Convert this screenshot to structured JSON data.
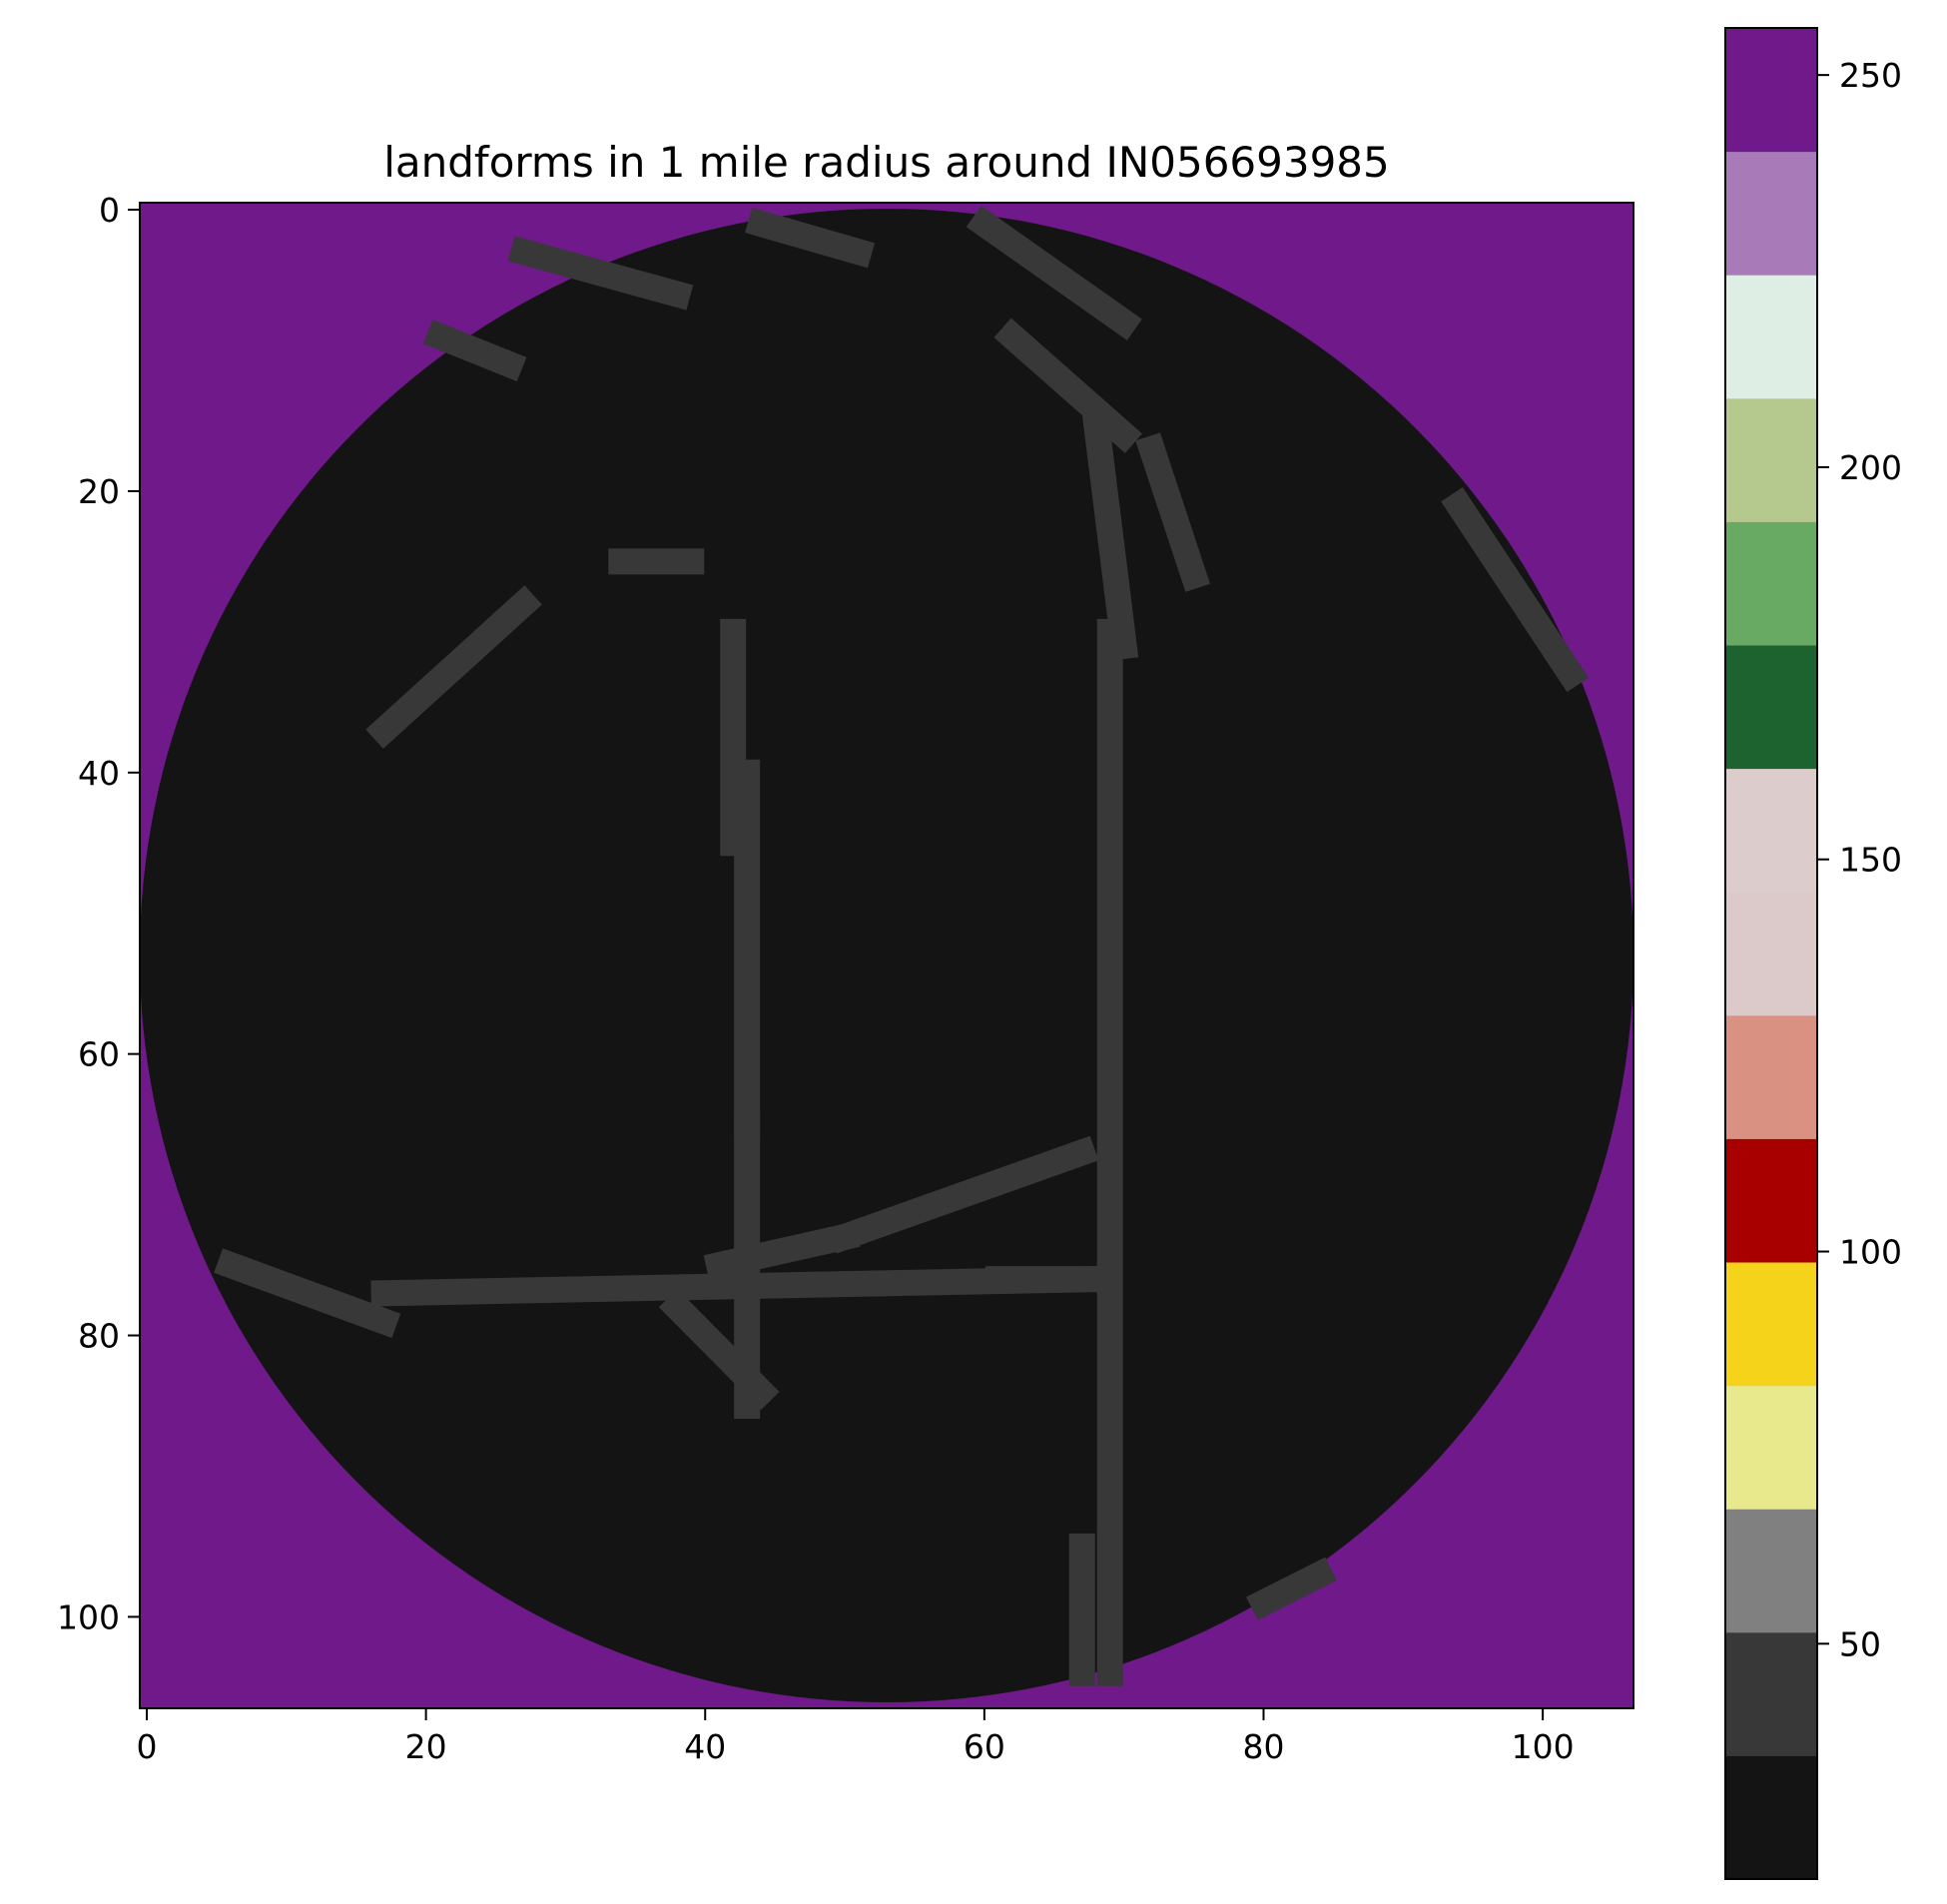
{
  "chart_data": {
    "type": "heatmap",
    "title": "landforms in 1 mile radius around IN056693985",
    "xlabel": "",
    "ylabel": "",
    "grid": false,
    "x_ticks": [
      "0",
      "20",
      "40",
      "60",
      "80",
      "100"
    ],
    "y_ticks": [
      "0",
      "20",
      "40",
      "60",
      "80",
      "100"
    ],
    "xlim": [
      -0.5,
      106.5
    ],
    "ylim": [
      106.5,
      -0.5
    ],
    "grid_size": [
      107,
      107
    ],
    "colorbar": {
      "range": [
        20,
        256
      ],
      "ticks": [
        "50",
        "100",
        "150",
        "200",
        "250"
      ],
      "colors": [
        "#141414",
        "#383838",
        "#808080",
        "#e8e88c",
        "#f5d31b",
        "#a80000",
        "#d99282",
        "#dccacb",
        "#dccdcc",
        "#1c6330",
        "#68aa63",
        "#b5c98e",
        "#dfeee4",
        "#a87ab8",
        "#6f198a"
      ]
    },
    "outside_value": 255,
    "inside_value": 21,
    "feature_value": 42,
    "features": [
      {
        "from": [
          69,
          30
        ],
        "to": [
          69,
          104
        ]
      },
      {
        "from": [
          68,
          15
        ],
        "to": [
          70,
          31
        ]
      },
      {
        "from": [
          72,
          17
        ],
        "to": [
          75,
          26
        ]
      },
      {
        "from": [
          62,
          9
        ],
        "to": [
          70,
          16
        ]
      },
      {
        "from": [
          60,
          1
        ],
        "to": [
          70,
          8
        ]
      },
      {
        "from": [
          44,
          1
        ],
        "to": [
          51,
          3
        ]
      },
      {
        "from": [
          27,
          3
        ],
        "to": [
          38,
          6
        ]
      },
      {
        "from": [
          21,
          9
        ],
        "to": [
          26,
          11
        ]
      },
      {
        "from": [
          42,
          30
        ],
        "to": [
          42,
          45
        ]
      },
      {
        "from": [
          43,
          40
        ],
        "to": [
          43,
          65
        ]
      },
      {
        "from": [
          43,
          65
        ],
        "to": [
          43,
          85
        ]
      },
      {
        "from": [
          34,
          25
        ],
        "to": [
          39,
          25
        ]
      },
      {
        "from": [
          17,
          37
        ],
        "to": [
          27,
          28
        ]
      },
      {
        "from": [
          6,
          75
        ],
        "to": [
          17,
          79
        ]
      },
      {
        "from": [
          17,
          77
        ],
        "to": [
          68,
          76
        ]
      },
      {
        "from": [
          38,
          78
        ],
        "to": [
          44,
          84
        ]
      },
      {
        "from": [
          41,
          75
        ],
        "to": [
          50,
          73
        ]
      },
      {
        "from": [
          50,
          73
        ],
        "to": [
          67,
          67
        ]
      },
      {
        "from": [
          61,
          76
        ],
        "to": [
          68,
          76
        ]
      },
      {
        "from": [
          94,
          21
        ],
        "to": [
          102,
          33
        ]
      },
      {
        "from": [
          80,
          99
        ],
        "to": [
          84,
          97
        ]
      },
      {
        "from": [
          67,
          95
        ],
        "to": [
          67,
          104
        ]
      }
    ]
  }
}
